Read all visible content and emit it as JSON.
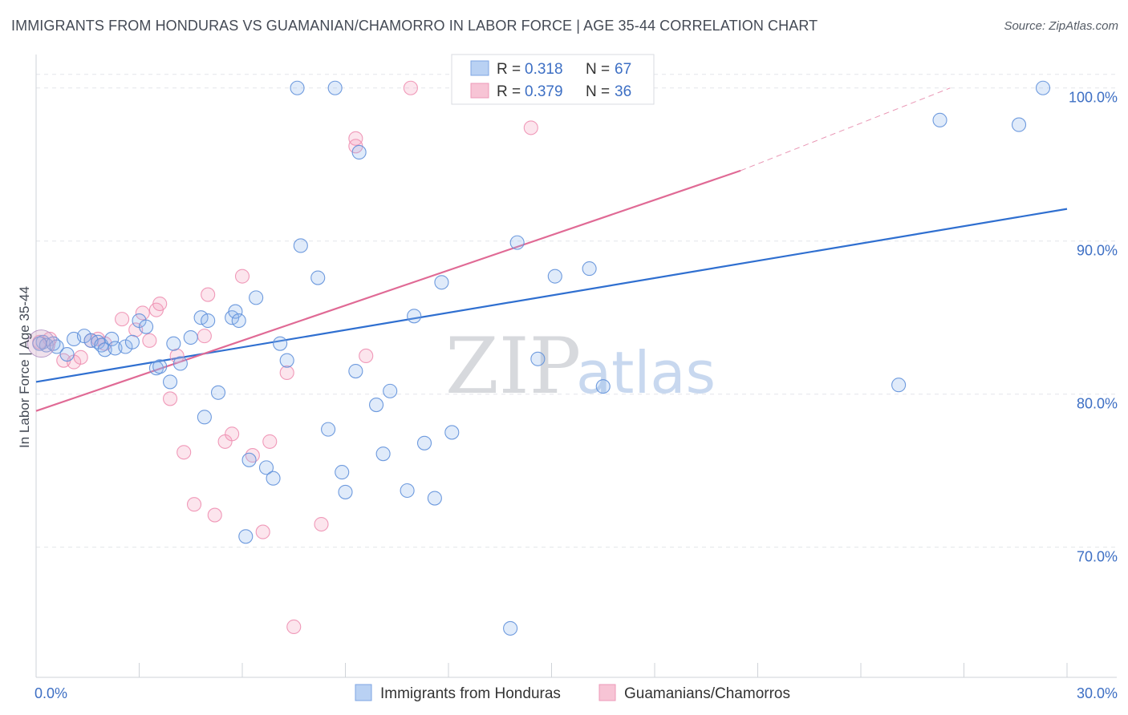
{
  "title": "IMMIGRANTS FROM HONDURAS VS GUAMANIAN/CHAMORRO IN LABOR FORCE | AGE 35-44 CORRELATION CHART",
  "source": "Source: ZipAtlas.com",
  "watermark": {
    "zip": "ZIP",
    "atlas": "atlas"
  },
  "legend_box": {
    "rows": [
      {
        "r_label": "R =",
        "r_value": "0.318",
        "n_label": "N =",
        "n_value": "67"
      },
      {
        "r_label": "R =",
        "r_value": "0.379",
        "n_label": "N =",
        "n_value": "36"
      }
    ]
  },
  "bottom_legend": [
    "Immigrants from Honduras",
    "Guamanians/Chamorros"
  ],
  "chart_data": {
    "type": "scatter",
    "title": "IMMIGRANTS FROM HONDURAS VS GUAMANIAN/CHAMORRO IN LABOR FORCE | AGE 35-44 CORRELATION CHART",
    "xlabel": "",
    "ylabel": "In Labor Force | Age 35-44",
    "xlim": [
      0,
      30
    ],
    "ylim": [
      61.5,
      102.5
    ],
    "x_tick_labels": [
      "0.0%",
      "30.0%"
    ],
    "y_ticks": [
      70,
      80,
      90,
      100
    ],
    "y_tick_labels": [
      "70.0%",
      "80.0%",
      "90.0%",
      "100.0%"
    ],
    "grid": true,
    "colors": {
      "blue": "#6f9fe0",
      "blue_line": "#2f6fd0",
      "pink": "#f08db0",
      "pink_line": "#e06a95",
      "axis_text": "#3d6fc4"
    },
    "series": [
      {
        "name": "Immigrants from Honduras",
        "color": "#6f9fe0",
        "trend": {
          "x": [
            0,
            30
          ],
          "y": [
            80.8,
            92.1
          ]
        },
        "points": [
          [
            0.2,
            83.4
          ],
          [
            0.3,
            83.2
          ],
          [
            0.5,
            83.3
          ],
          [
            0.6,
            83.1
          ],
          [
            0.9,
            82.6
          ],
          [
            1.1,
            83.6
          ],
          [
            1.4,
            83.8
          ],
          [
            1.6,
            83.5
          ],
          [
            1.8,
            83.4
          ],
          [
            1.9,
            83.2
          ],
          [
            2.0,
            82.9
          ],
          [
            2.2,
            83.6
          ],
          [
            2.3,
            83.0
          ],
          [
            2.6,
            83.1
          ],
          [
            2.8,
            83.4
          ],
          [
            3.0,
            84.8
          ],
          [
            3.2,
            84.4
          ],
          [
            3.5,
            81.7
          ],
          [
            3.6,
            81.8
          ],
          [
            3.9,
            80.8
          ],
          [
            4.0,
            83.3
          ],
          [
            4.2,
            82.0
          ],
          [
            4.5,
            83.7
          ],
          [
            4.8,
            85.0
          ],
          [
            4.9,
            78.5
          ],
          [
            5.0,
            84.8
          ],
          [
            5.3,
            80.1
          ],
          [
            5.7,
            85.0
          ],
          [
            5.8,
            85.4
          ],
          [
            5.9,
            84.8
          ],
          [
            6.1,
            70.7
          ],
          [
            6.2,
            75.7
          ],
          [
            6.4,
            86.3
          ],
          [
            6.7,
            75.2
          ],
          [
            6.9,
            74.5
          ],
          [
            7.1,
            83.3
          ],
          [
            7.3,
            82.2
          ],
          [
            7.6,
            100.0
          ],
          [
            7.7,
            89.7
          ],
          [
            8.2,
            87.6
          ],
          [
            8.5,
            77.7
          ],
          [
            8.7,
            100.0
          ],
          [
            8.9,
            74.9
          ],
          [
            9.0,
            73.6
          ],
          [
            9.3,
            81.5
          ],
          [
            9.4,
            95.8
          ],
          [
            9.9,
            79.3
          ],
          [
            10.1,
            76.1
          ],
          [
            10.3,
            80.2
          ],
          [
            10.8,
            73.7
          ],
          [
            11.0,
            85.1
          ],
          [
            11.3,
            76.8
          ],
          [
            11.6,
            73.2
          ],
          [
            11.8,
            87.3
          ],
          [
            12.1,
            77.5
          ],
          [
            13.2,
            100.0
          ],
          [
            13.8,
            64.7
          ],
          [
            14.0,
            89.9
          ],
          [
            14.6,
            82.3
          ],
          [
            15.1,
            87.7
          ],
          [
            16.1,
            88.2
          ],
          [
            16.5,
            80.5
          ],
          [
            26.3,
            97.9
          ],
          [
            25.1,
            80.6
          ],
          [
            28.6,
            97.6
          ],
          [
            29.3,
            100.0
          ],
          [
            0.1,
            83.3
          ]
        ]
      },
      {
        "name": "Guamanians/Chamorros",
        "color": "#f08db0",
        "trend": {
          "x": [
            0,
            20.5
          ],
          "y": [
            78.9,
            94.6
          ]
        },
        "trend_extension": {
          "x": [
            20.5,
            26.6
          ],
          "y": [
            94.6,
            100.0
          ]
        },
        "points": [
          [
            0.1,
            83.4
          ],
          [
            0.4,
            83.6
          ],
          [
            0.8,
            82.2
          ],
          [
            1.1,
            82.1
          ],
          [
            1.3,
            82.4
          ],
          [
            1.6,
            83.5
          ],
          [
            1.8,
            83.6
          ],
          [
            2.0,
            83.3
          ],
          [
            2.5,
            84.9
          ],
          [
            2.9,
            84.2
          ],
          [
            3.1,
            85.3
          ],
          [
            3.3,
            83.5
          ],
          [
            3.5,
            85.5
          ],
          [
            3.6,
            85.9
          ],
          [
            3.9,
            79.7
          ],
          [
            4.1,
            82.5
          ],
          [
            4.3,
            76.2
          ],
          [
            4.6,
            72.8
          ],
          [
            4.9,
            83.8
          ],
          [
            5.0,
            86.5
          ],
          [
            5.2,
            72.1
          ],
          [
            5.5,
            76.9
          ],
          [
            5.7,
            77.4
          ],
          [
            6.0,
            87.7
          ],
          [
            6.3,
            76.0
          ],
          [
            6.6,
            71.0
          ],
          [
            6.8,
            76.9
          ],
          [
            7.3,
            81.4
          ],
          [
            7.5,
            64.8
          ],
          [
            8.3,
            71.5
          ],
          [
            9.3,
            96.2
          ],
          [
            9.3,
            96.7
          ],
          [
            9.6,
            82.5
          ],
          [
            10.9,
            100.0
          ],
          [
            14.4,
            97.4
          ],
          [
            16.7,
            100.0
          ]
        ]
      }
    ]
  }
}
